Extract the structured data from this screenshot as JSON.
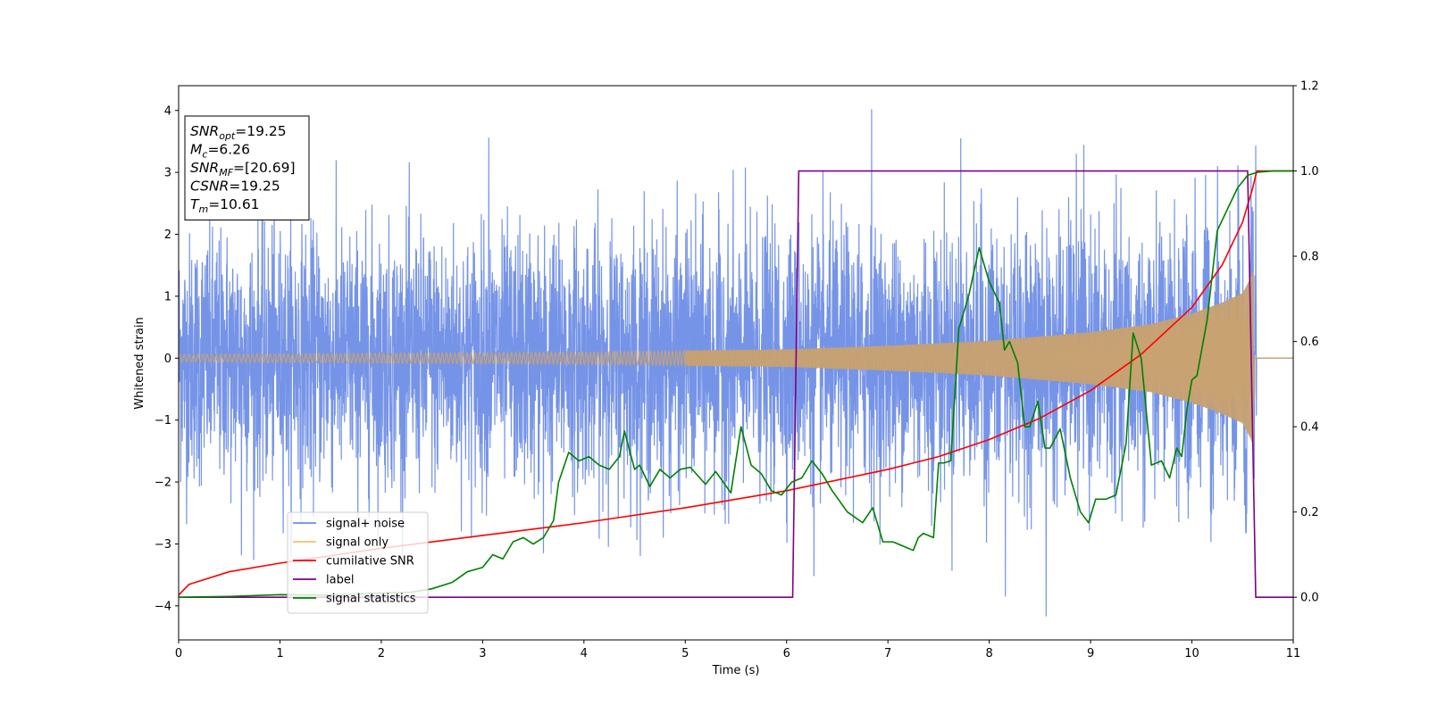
{
  "chart_data": {
    "type": "line",
    "xlabel": "Time (s)",
    "ylabel": "Whitened strain",
    "xlim": [
      0,
      11
    ],
    "ylim": [
      -4.55,
      4.4
    ],
    "y2lim": [
      -0.1,
      1.2
    ],
    "x_ticks": [
      0,
      1,
      2,
      3,
      4,
      5,
      6,
      7,
      8,
      9,
      10,
      11
    ],
    "y_ticks": [
      -4,
      -3,
      -2,
      -1,
      0,
      1,
      2,
      3,
      4
    ],
    "y2_ticks": [
      0.0,
      0.2,
      0.4,
      0.6,
      0.8,
      1.0,
      1.2
    ],
    "y2_tick_labels": [
      "0.0",
      "0.2",
      "0.4",
      "0.6",
      "0.8",
      "1.0",
      "1.2"
    ],
    "grid": false,
    "legend_position": "lower-left",
    "info_box": {
      "lines": [
        {
          "sym": "SNR",
          "sub": "opt",
          "val": "=19.25"
        },
        {
          "sym": "M",
          "sub": "c",
          "val": "=6.26"
        },
        {
          "sym": "SNR",
          "sub": "MF",
          "val": "=[20.69]"
        },
        {
          "sym": "CSNR",
          "sub": "",
          "val": "=19.25"
        },
        {
          "sym": "T",
          "sub": "m",
          "val": "=10.61"
        }
      ]
    },
    "series": [
      {
        "name": "signal+ noise",
        "color": "#6f8ee6",
        "axis": "left",
        "kind": "noise",
        "sigma": 1.0,
        "duration": [
          0,
          10.61
        ],
        "extremes": [
          {
            "x": 6.84,
            "y": 4.02
          },
          {
            "x": 8.56,
            "y": -4.17
          },
          {
            "x": 3.06,
            "y": 3.56
          },
          {
            "x": 7.72,
            "y": 3.55
          },
          {
            "x": 3.6,
            "y": -3.15
          },
          {
            "x": 0.62,
            "y": -3.18
          },
          {
            "x": 6.27,
            "y": -3.52
          },
          {
            "x": 10.63,
            "y": 3.43
          },
          {
            "x": 8.16,
            "y": -3.85
          },
          {
            "x": 8.86,
            "y": 3.3
          }
        ]
      },
      {
        "name": "signal only",
        "color": "#f5c06a",
        "axis": "left",
        "kind": "chirp",
        "merger_time": 10.61,
        "envelope": [
          [
            0,
            0.06
          ],
          [
            4,
            0.1
          ],
          [
            6,
            0.14
          ],
          [
            7,
            0.2
          ],
          [
            8,
            0.28
          ],
          [
            9,
            0.42
          ],
          [
            9.6,
            0.55
          ],
          [
            10,
            0.72
          ],
          [
            10.3,
            0.9
          ],
          [
            10.5,
            1.05
          ],
          [
            10.58,
            1.3
          ],
          [
            10.61,
            1.45
          ],
          [
            10.62,
            0.0
          ],
          [
            11,
            0.0
          ]
        ]
      },
      {
        "name": "cumilative SNR",
        "color": "#ff0000",
        "axis": "right",
        "points": [
          [
            0,
            0.005
          ],
          [
            0.1,
            0.03
          ],
          [
            0.5,
            0.06
          ],
          [
            1,
            0.08
          ],
          [
            2,
            0.115
          ],
          [
            3,
            0.145
          ],
          [
            4,
            0.175
          ],
          [
            5,
            0.21
          ],
          [
            6,
            0.25
          ],
          [
            7,
            0.3
          ],
          [
            7.5,
            0.33
          ],
          [
            8,
            0.37
          ],
          [
            8.5,
            0.42
          ],
          [
            9,
            0.485
          ],
          [
            9.5,
            0.57
          ],
          [
            10,
            0.68
          ],
          [
            10.3,
            0.78
          ],
          [
            10.5,
            0.88
          ],
          [
            10.6,
            0.96
          ],
          [
            10.64,
            1.0
          ],
          [
            11,
            1.0
          ]
        ]
      },
      {
        "name": "label",
        "color": "#800080",
        "axis": "right",
        "points": [
          [
            0,
            0.0
          ],
          [
            6.06,
            0.0
          ],
          [
            6.12,
            1.0
          ],
          [
            10.55,
            1.0
          ],
          [
            10.63,
            0.0
          ],
          [
            11,
            0.0
          ]
        ]
      },
      {
        "name": "signal statistics",
        "color": "#008000",
        "axis": "right",
        "points": [
          [
            0,
            0.0
          ],
          [
            0.5,
            0.002
          ],
          [
            1,
            0.006
          ],
          [
            1.5,
            0.005
          ],
          [
            2,
            0.01
          ],
          [
            2.3,
            0.012
          ],
          [
            2.5,
            0.02
          ],
          [
            2.7,
            0.035
          ],
          [
            2.85,
            0.06
          ],
          [
            3.0,
            0.07
          ],
          [
            3.1,
            0.1
          ],
          [
            3.2,
            0.09
          ],
          [
            3.3,
            0.13
          ],
          [
            3.4,
            0.14
          ],
          [
            3.5,
            0.125
          ],
          [
            3.6,
            0.14
          ],
          [
            3.7,
            0.18
          ],
          [
            3.75,
            0.27
          ],
          [
            3.85,
            0.34
          ],
          [
            3.95,
            0.32
          ],
          [
            4.05,
            0.33
          ],
          [
            4.15,
            0.31
          ],
          [
            4.25,
            0.3
          ],
          [
            4.35,
            0.33
          ],
          [
            4.4,
            0.39
          ],
          [
            4.5,
            0.3
          ],
          [
            4.55,
            0.31
          ],
          [
            4.65,
            0.26
          ],
          [
            4.75,
            0.3
          ],
          [
            4.85,
            0.28
          ],
          [
            4.95,
            0.3
          ],
          [
            5.05,
            0.305
          ],
          [
            5.2,
            0.265
          ],
          [
            5.3,
            0.295
          ],
          [
            5.45,
            0.245
          ],
          [
            5.55,
            0.4
          ],
          [
            5.65,
            0.31
          ],
          [
            5.75,
            0.29
          ],
          [
            5.85,
            0.25
          ],
          [
            5.95,
            0.24
          ],
          [
            6.05,
            0.27
          ],
          [
            6.15,
            0.28
          ],
          [
            6.25,
            0.32
          ],
          [
            6.35,
            0.29
          ],
          [
            6.45,
            0.25
          ],
          [
            6.6,
            0.2
          ],
          [
            6.75,
            0.175
          ],
          [
            6.85,
            0.21
          ],
          [
            6.95,
            0.13
          ],
          [
            7.05,
            0.13
          ],
          [
            7.15,
            0.12
          ],
          [
            7.25,
            0.11
          ],
          [
            7.3,
            0.14
          ],
          [
            7.35,
            0.15
          ],
          [
            7.45,
            0.14
          ],
          [
            7.5,
            0.315
          ],
          [
            7.55,
            0.315
          ],
          [
            7.62,
            0.32
          ],
          [
            7.7,
            0.63
          ],
          [
            7.8,
            0.71
          ],
          [
            7.9,
            0.82
          ],
          [
            8.0,
            0.74
          ],
          [
            8.1,
            0.69
          ],
          [
            8.15,
            0.58
          ],
          [
            8.2,
            0.6
          ],
          [
            8.28,
            0.55
          ],
          [
            8.35,
            0.4
          ],
          [
            8.4,
            0.4
          ],
          [
            8.48,
            0.46
          ],
          [
            8.55,
            0.35
          ],
          [
            8.6,
            0.35
          ],
          [
            8.7,
            0.395
          ],
          [
            8.8,
            0.28
          ],
          [
            8.9,
            0.2
          ],
          [
            8.98,
            0.175
          ],
          [
            9.05,
            0.23
          ],
          [
            9.15,
            0.23
          ],
          [
            9.25,
            0.24
          ],
          [
            9.35,
            0.36
          ],
          [
            9.42,
            0.62
          ],
          [
            9.5,
            0.56
          ],
          [
            9.6,
            0.31
          ],
          [
            9.7,
            0.32
          ],
          [
            9.78,
            0.28
          ],
          [
            9.85,
            0.35
          ],
          [
            9.9,
            0.33
          ],
          [
            9.95,
            0.44
          ],
          [
            10.0,
            0.51
          ],
          [
            10.05,
            0.52
          ],
          [
            10.15,
            0.65
          ],
          [
            10.25,
            0.86
          ],
          [
            10.35,
            0.91
          ],
          [
            10.45,
            0.96
          ],
          [
            10.55,
            0.99
          ],
          [
            10.65,
            0.997
          ],
          [
            10.8,
            1.0
          ],
          [
            11.0,
            1.0
          ]
        ]
      }
    ]
  }
}
